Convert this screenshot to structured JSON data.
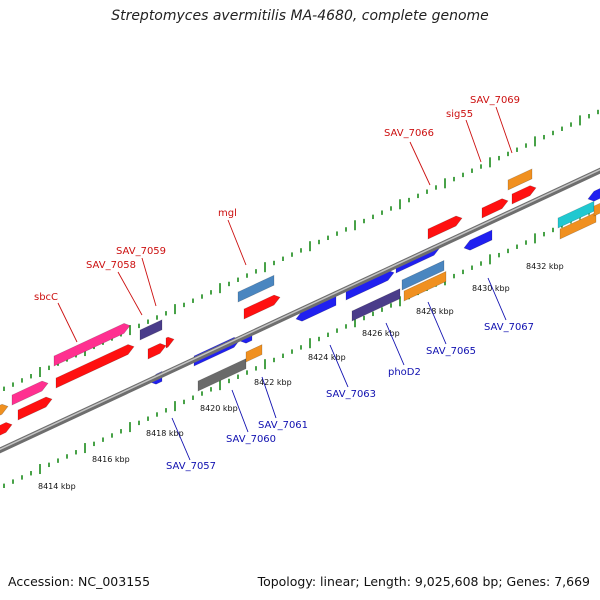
{
  "title": "Streptomyces avermitilis MA-4680, complete genome",
  "footer": {
    "accession": "Accession: NC_003155",
    "summary": "Topology: linear; Length: 9,025,608 bp; Genes: 7,669"
  },
  "colors": {
    "backbone": "#8a8a8a",
    "tick": "#1a8a1a",
    "label_top": "#cc1010",
    "label_bottom": "#1010b0"
  },
  "ticks": [
    {
      "label": "8414 kbp",
      "kbp": 8414
    },
    {
      "label": "8416 kbp",
      "kbp": 8416
    },
    {
      "label": "8418 kbp",
      "kbp": 8418
    },
    {
      "label": "8420 kbp",
      "kbp": 8420
    },
    {
      "label": "8422 kbp",
      "kbp": 8422
    },
    {
      "label": "8424 kbp",
      "kbp": 8424
    },
    {
      "label": "8426 kbp",
      "kbp": 8426
    },
    {
      "label": "8428 kbp",
      "kbp": 8428
    },
    {
      "label": "8430 kbp",
      "kbp": 8430
    },
    {
      "label": "8432 kbp",
      "kbp": 8432
    }
  ],
  "top_labels": [
    {
      "text": "sbcC"
    },
    {
      "text": "SAV_7058"
    },
    {
      "text": "SAV_7059"
    },
    {
      "text": "mgl"
    },
    {
      "text": "SAV_7066"
    },
    {
      "text": "sig55"
    },
    {
      "text": "SAV_7069"
    }
  ],
  "bottom_labels": [
    {
      "text": "SAV_7057"
    },
    {
      "text": "SAV_7060"
    },
    {
      "text": "SAV_7061"
    },
    {
      "text": "SAV_7063"
    },
    {
      "text": "phoD2"
    },
    {
      "text": "SAV_7065"
    },
    {
      "text": "SAV_7067"
    }
  ]
}
